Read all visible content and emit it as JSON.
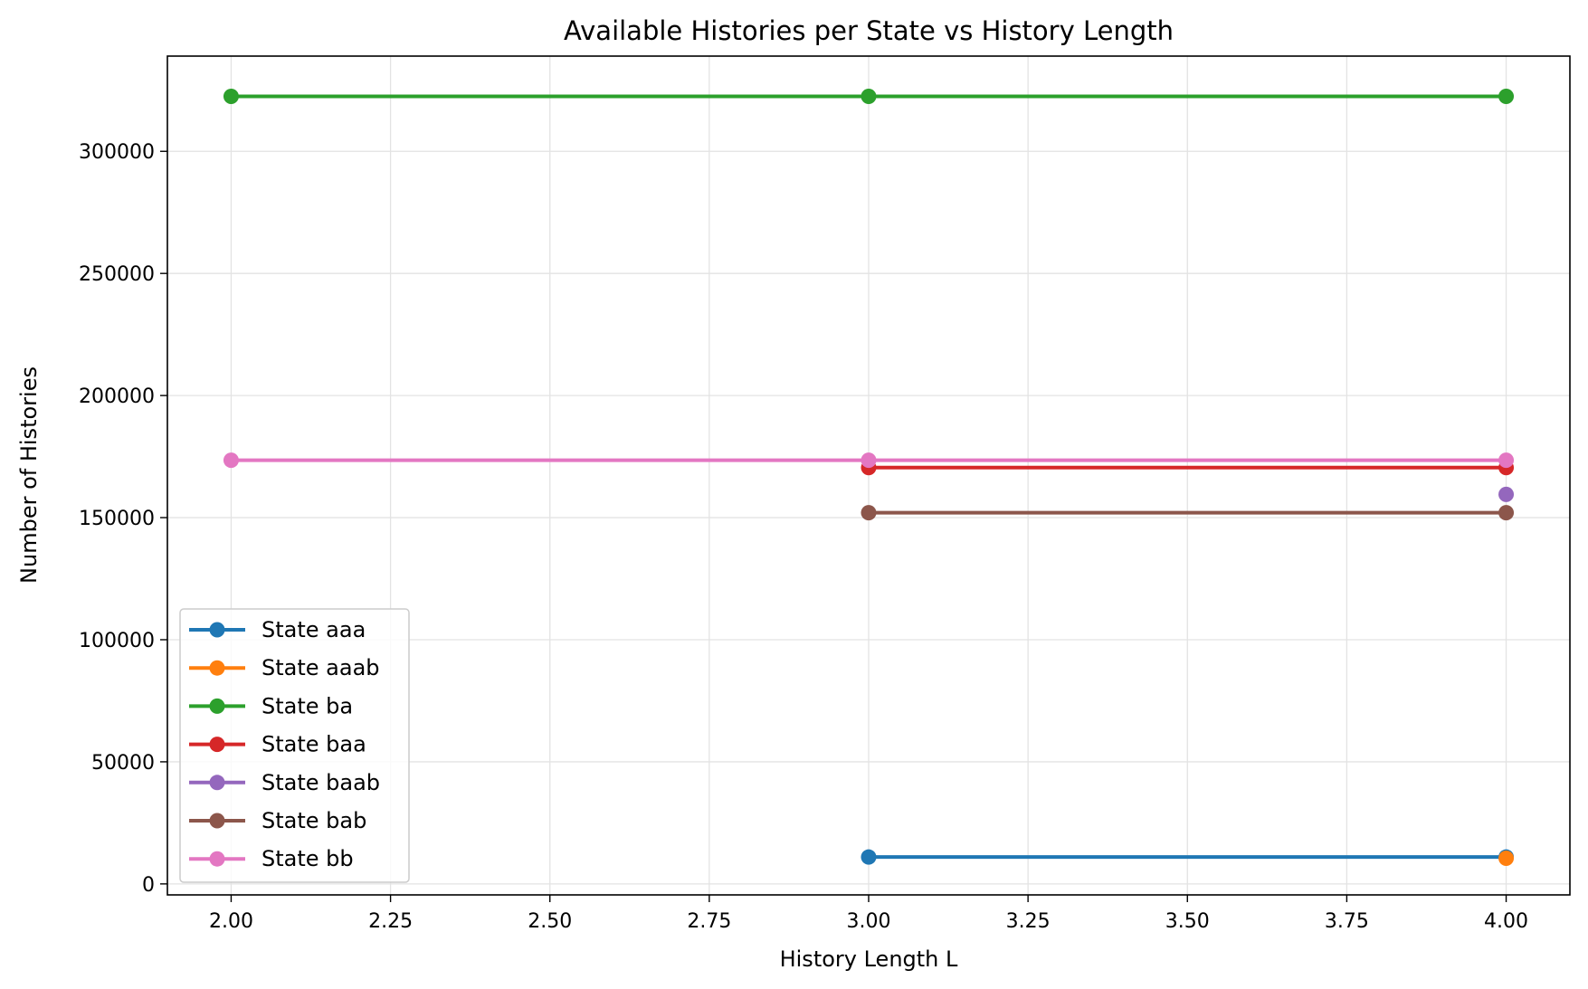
{
  "chart_data": {
    "type": "line",
    "title": "Available Histories per State vs History Length",
    "xlabel": "History Length L",
    "ylabel": "Number of Histories",
    "xlim": [
      1.9,
      4.1
    ],
    "ylim": [
      -4500,
      339000
    ],
    "xticks": [
      2.0,
      2.25,
      2.5,
      2.75,
      3.0,
      3.25,
      3.5,
      3.75,
      4.0
    ],
    "xtick_labels": [
      "2.00",
      "2.25",
      "2.50",
      "2.75",
      "3.00",
      "3.25",
      "3.50",
      "3.75",
      "4.00"
    ],
    "yticks": [
      0,
      50000,
      100000,
      150000,
      200000,
      250000,
      300000
    ],
    "ytick_labels": [
      "0",
      "50000",
      "100000",
      "150000",
      "200000",
      "250000",
      "300000"
    ],
    "grid": true,
    "legend_position": "lower-left",
    "series": [
      {
        "name": "State aaa",
        "color": "#1f77b4",
        "x": [
          3,
          4
        ],
        "y": [
          11000,
          11000
        ]
      },
      {
        "name": "State aaab",
        "color": "#ff7f0e",
        "x": [
          4
        ],
        "y": [
          10500
        ]
      },
      {
        "name": "State ba",
        "color": "#2ca02c",
        "x": [
          2,
          3,
          4
        ],
        "y": [
          322500,
          322500,
          322500
        ]
      },
      {
        "name": "State baa",
        "color": "#d62728",
        "x": [
          3,
          4
        ],
        "y": [
          170500,
          170500
        ]
      },
      {
        "name": "State baab",
        "color": "#9467bd",
        "x": [
          4
        ],
        "y": [
          159500
        ]
      },
      {
        "name": "State bab",
        "color": "#8c564b",
        "x": [
          3,
          4
        ],
        "y": [
          152000,
          152000
        ]
      },
      {
        "name": "State bb",
        "color": "#e377c2",
        "x": [
          2,
          3,
          4
        ],
        "y": [
          173500,
          173500,
          173500
        ]
      }
    ]
  }
}
